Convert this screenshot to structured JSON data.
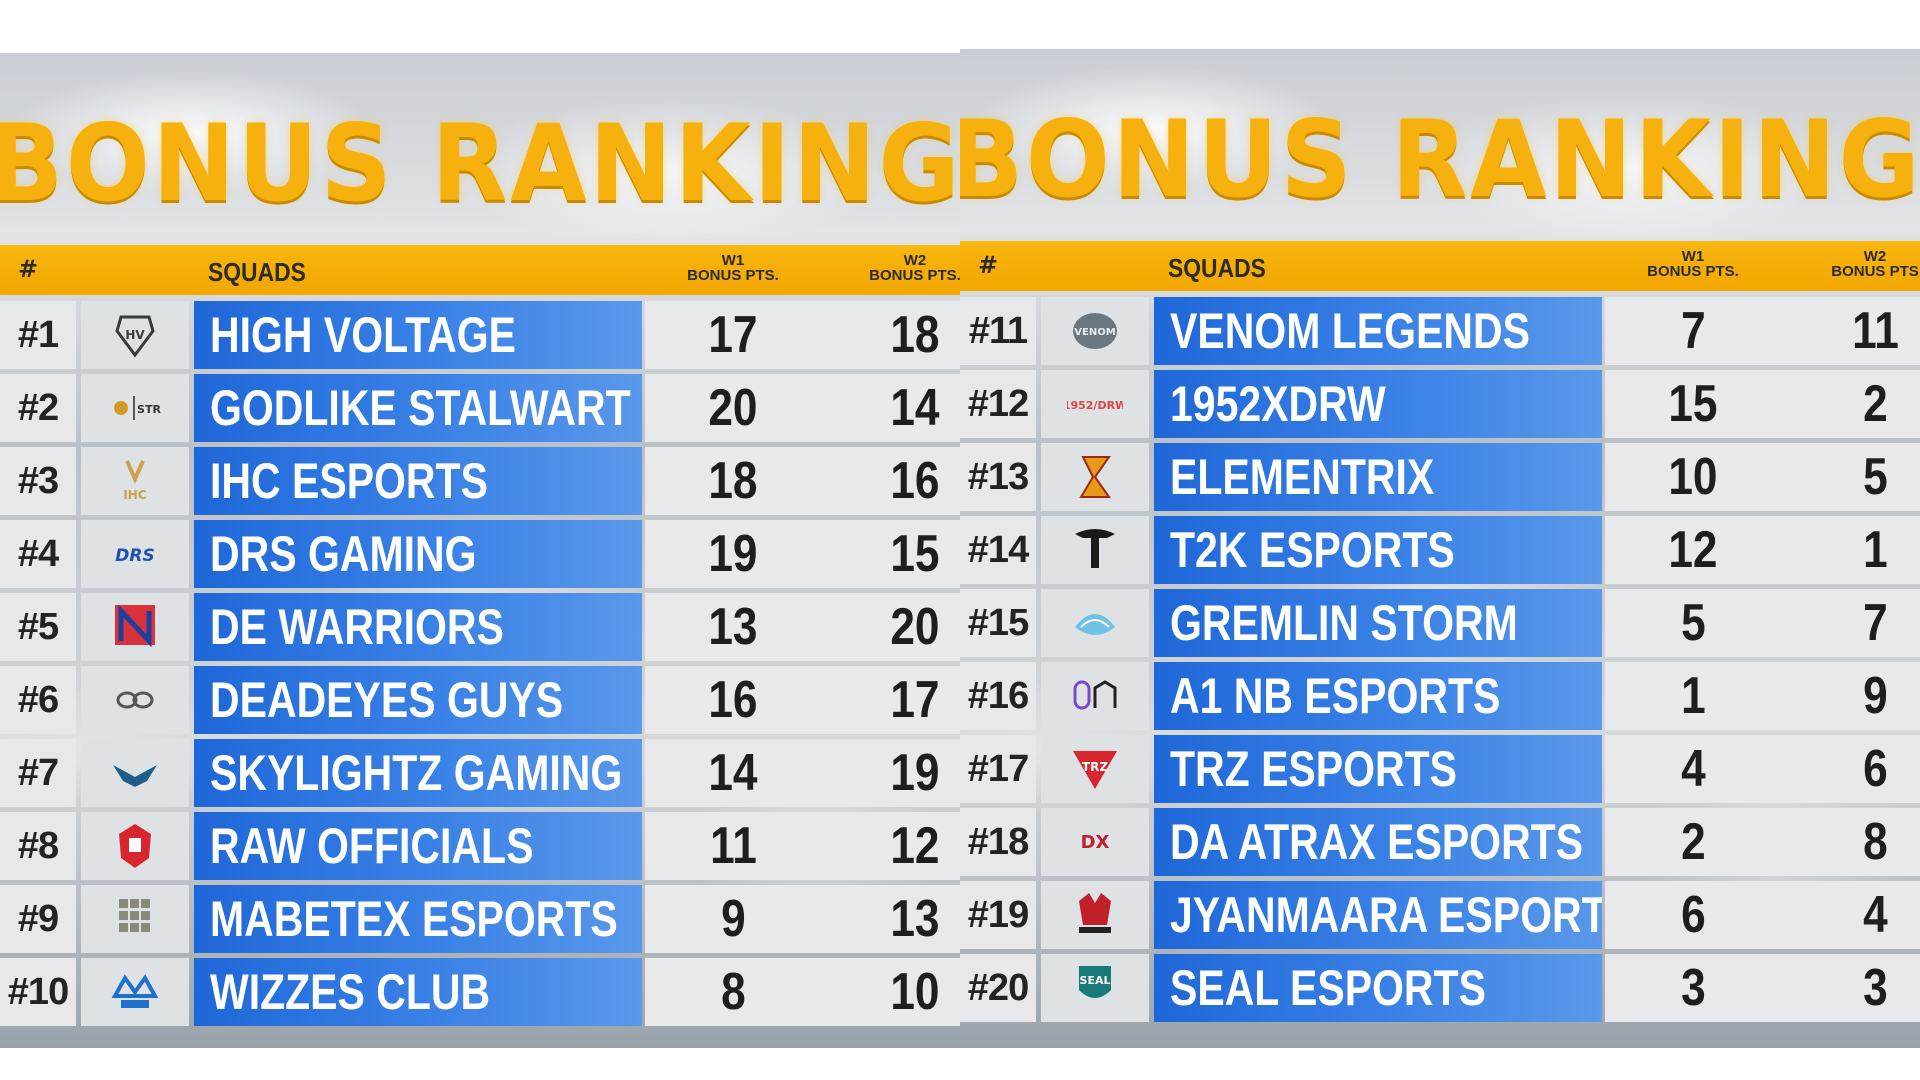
{
  "panels": [
    {
      "title": "BONUS RANKING",
      "columns": {
        "rank": "#",
        "squads": "SQUADS",
        "w1_line1": "W1",
        "w1_line2": "BONUS PTS.",
        "w2_line1": "W2",
        "w2_line2": "BONUS PTS."
      },
      "rows": [
        {
          "rank": "#1",
          "logo": "high-voltage-logo",
          "name": "HIGH VOLTAGE",
          "w1": "17",
          "w2": "18"
        },
        {
          "rank": "#2",
          "logo": "godlike-stalwart-logo",
          "name": "GODLIKE STALWART",
          "w1": "20",
          "w2": "14"
        },
        {
          "rank": "#3",
          "logo": "ihc-esports-logo",
          "name": "IHC ESPORTS",
          "w1": "18",
          "w2": "16"
        },
        {
          "rank": "#4",
          "logo": "drs-gaming-logo",
          "name": "DRS GAMING",
          "w1": "19",
          "w2": "15"
        },
        {
          "rank": "#5",
          "logo": "de-warriors-logo",
          "name": "DE WARRIORS",
          "w1": "13",
          "w2": "20"
        },
        {
          "rank": "#6",
          "logo": "deadeyes-guys-logo",
          "name": "DEADEYES GUYS",
          "w1": "16",
          "w2": "17"
        },
        {
          "rank": "#7",
          "logo": "skylightz-gaming-logo",
          "name": "SKYLIGHTZ GAMING",
          "w1": "14",
          "w2": "19"
        },
        {
          "rank": "#8",
          "logo": "raw-officials-logo",
          "name": "RAW OFFICIALS",
          "w1": "11",
          "w2": "12"
        },
        {
          "rank": "#9",
          "logo": "mabetex-esports-logo",
          "name": "MABETEX ESPORTS",
          "w1": "9",
          "w2": "13"
        },
        {
          "rank": "#10",
          "logo": "wizzes-club-logo",
          "name": "WIZZES CLUB",
          "w1": "8",
          "w2": "10"
        }
      ]
    },
    {
      "title": "BONUS RANKING",
      "columns": {
        "rank": "#",
        "squads": "SQUADS",
        "w1_line1": "W1",
        "w1_line2": "BONUS PTS.",
        "w2_line1": "W2",
        "w2_line2": "BONUS PTS"
      },
      "rows": [
        {
          "rank": "#11",
          "logo": "venom-legends-logo",
          "name": "VENOM LEGENDS",
          "w1": "7",
          "w2": "11"
        },
        {
          "rank": "#12",
          "logo": "1952xdrw-logo",
          "name": "1952XDRW",
          "w1": "15",
          "w2": "2"
        },
        {
          "rank": "#13",
          "logo": "elementrix-logo",
          "name": "ELEMENTRIX",
          "w1": "10",
          "w2": "5"
        },
        {
          "rank": "#14",
          "logo": "t2k-esports-logo",
          "name": "T2K ESPORTS",
          "w1": "12",
          "w2": "1"
        },
        {
          "rank": "#15",
          "logo": "gremlin-storm-logo",
          "name": "GREMLIN STORM",
          "w1": "5",
          "w2": "7"
        },
        {
          "rank": "#16",
          "logo": "a1-nb-esports-logo",
          "name": "A1 NB ESPORTS",
          "w1": "1",
          "w2": "9"
        },
        {
          "rank": "#17",
          "logo": "trz-esports-logo",
          "name": "TRZ ESPORTS",
          "w1": "4",
          "w2": "6"
        },
        {
          "rank": "#18",
          "logo": "da-atrax-esports-logo",
          "name": "DA ATRAX ESPORTS",
          "w1": "2",
          "w2": "8"
        },
        {
          "rank": "#19",
          "logo": "jyanmaara-esports-logo",
          "name": "JYANMAARA ESPORTS",
          "w1": "6",
          "w2": "4"
        },
        {
          "rank": "#20",
          "logo": "seal-esports-logo",
          "name": "SEAL ESPORTS",
          "w1": "3",
          "w2": "3"
        }
      ]
    }
  ],
  "colors": {
    "title": "#f6b10f",
    "header": "#f5ab05",
    "name_bg": "#2d76e0",
    "cell_bg": "#e7e9eb"
  }
}
